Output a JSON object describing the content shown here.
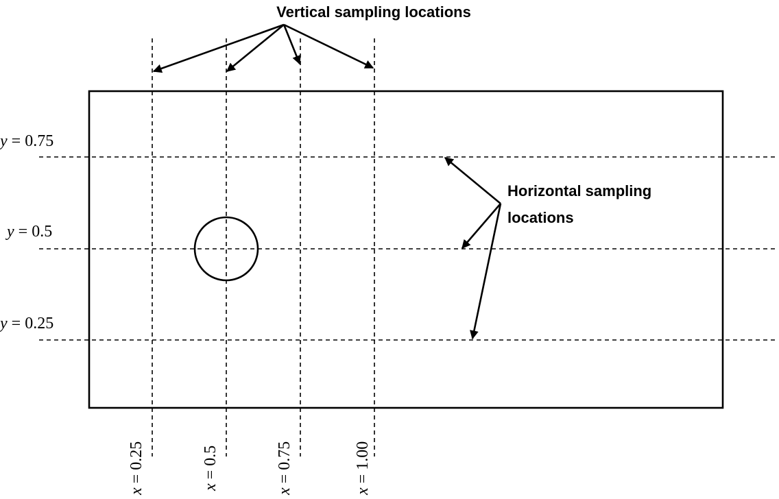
{
  "diagram": {
    "vertical_annotation": "Vertical sampling locations",
    "horizontal_annotation": {
      "line1": "Horizontal sampling",
      "line2": "locations"
    },
    "horizontal_lines": [
      {
        "var": "y",
        "eq": " = ",
        "value": "0.75"
      },
      {
        "var": "y",
        "eq": " = ",
        "value": "0.5"
      },
      {
        "var": "y",
        "eq": " = ",
        "value": "0.25"
      }
    ],
    "vertical_lines": [
      {
        "var": "x",
        "eq": " = ",
        "value": "0.25"
      },
      {
        "var": "x",
        "eq": " = ",
        "value": "0.5"
      },
      {
        "var": "x",
        "eq": " = ",
        "value": "0.75"
      },
      {
        "var": "x",
        "eq": " = ",
        "value": "1.00"
      }
    ],
    "colors": {
      "stroke": "#000000",
      "background": "#ffffff"
    }
  }
}
